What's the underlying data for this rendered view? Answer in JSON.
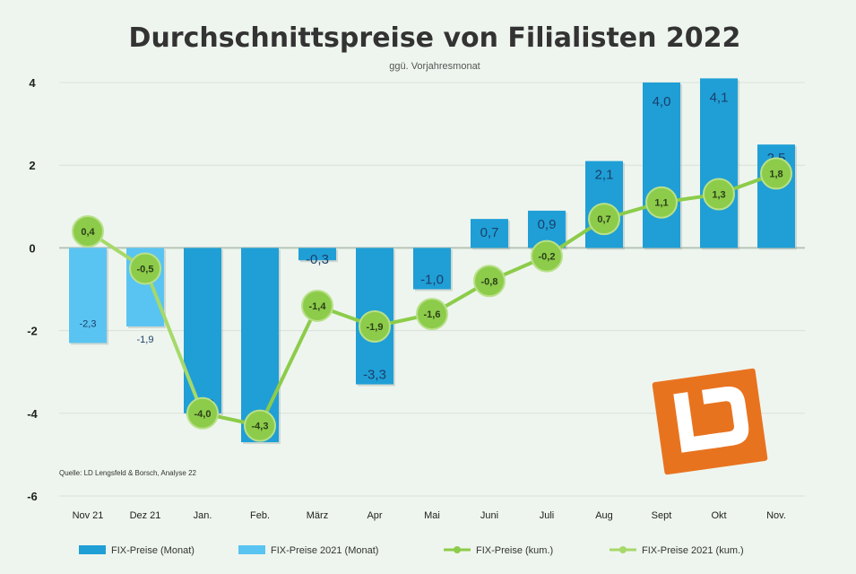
{
  "chart_data": {
    "type": "bar",
    "title": "Durchschnittspreise von Filialisten 2022",
    "subtitle": "ggü. Vorjahresmonat",
    "categories": [
      "Nov 21",
      "Dez 21",
      "Jan.",
      "Feb.",
      "März",
      "Apr",
      "Mai",
      "Juni",
      "Juli",
      "Aug",
      "Sept",
      "Okt",
      "Nov."
    ],
    "ylim": [
      -6,
      4
    ],
    "yticks": [
      "4",
      "2",
      "0",
      "-2",
      "-4",
      "-6"
    ],
    "grid": true,
    "legend_position": "bottom",
    "source": "Quelle: LD Lengsfeld & Borsch, Analyse 22",
    "series": [
      {
        "name": "FIX-Preise (Monat)",
        "kind": "bar",
        "color": "#1f9fd6",
        "values": [
          null,
          null,
          -4.0,
          -4.7,
          -0.3,
          -3.3,
          -1.0,
          0.7,
          0.9,
          2.1,
          4.0,
          4.1,
          2.5
        ],
        "labels": [
          "",
          "",
          "-4,0",
          "-4,7",
          "-0,3",
          "-3,3",
          "-1,0",
          "0,7",
          "0,9",
          "2,1",
          "4,0",
          "4,1",
          "2,5"
        ]
      },
      {
        "name": "FIX-Preise 2021 (Monat)",
        "kind": "bar",
        "color": "#59c4f2",
        "values": [
          -2.3,
          -1.9,
          null,
          null,
          null,
          null,
          null,
          null,
          null,
          null,
          null,
          null,
          null
        ],
        "labels": [
          "-2,3",
          "-1,9",
          "",
          "",
          "",
          "",
          "",
          "",
          "",
          "",
          "",
          "",
          ""
        ]
      },
      {
        "name": "FIX-Preise (kum.)",
        "kind": "line",
        "color": "#8ccc4a",
        "values": [
          null,
          null,
          -4.0,
          -4.3,
          -1.4,
          -1.9,
          -1.6,
          -0.8,
          -0.2,
          0.7,
          1.1,
          1.3,
          1.8
        ],
        "labels": [
          "",
          "",
          "-4,0",
          "-4,3",
          "-1,4",
          "-1,9",
          "-1,6",
          "-0,8",
          "-0,2",
          "0,7",
          "1,1",
          "1,3",
          "1,8"
        ]
      },
      {
        "name": "FIX-Preise 2021 (kum.)",
        "kind": "line",
        "color": "#a6d96a",
        "values": [
          0.4,
          -0.5,
          -4.0,
          null,
          null,
          null,
          null,
          null,
          null,
          null,
          null,
          null,
          null
        ],
        "labels": [
          "0,4",
          "-0,5",
          "",
          "",
          "",
          "",
          "",
          "",
          "",
          "",
          "",
          "",
          ""
        ]
      }
    ]
  },
  "logo": {
    "color": "#e8731f",
    "text": "LD"
  }
}
